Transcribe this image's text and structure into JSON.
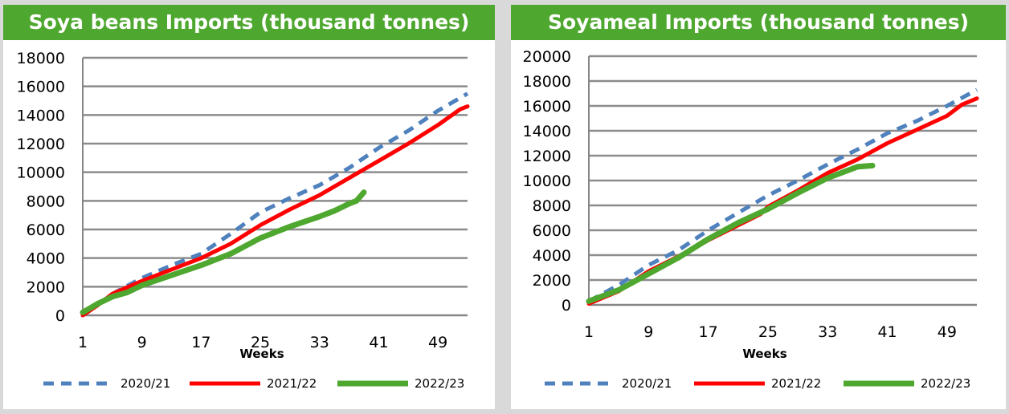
{
  "colors": {
    "s2020": "#4f81bd",
    "s2021": "#ff0000",
    "s2022": "#4ea72e",
    "banner": "#4ea72e"
  },
  "chart_data": [
    {
      "type": "line",
      "title": "Soya beans Imports (thousand tonnes)",
      "xlabel": "Weeks",
      "ylabel": "",
      "xlim": [
        1,
        53
      ],
      "ylim": [
        0,
        18000
      ],
      "xticks": [
        1,
        9,
        17,
        25,
        33,
        41,
        49
      ],
      "yticks": [
        0,
        2000,
        4000,
        6000,
        8000,
        10000,
        12000,
        14000,
        16000,
        18000
      ],
      "grid": true,
      "legend": "bottom",
      "series": [
        {
          "name": "2020/21",
          "style": "dashed",
          "color": "#4f81bd",
          "x": [
            1,
            3,
            5,
            9,
            13,
            17,
            21,
            25,
            29,
            33,
            37,
            41,
            45,
            49,
            53
          ],
          "y": [
            0,
            700,
            1500,
            2600,
            3500,
            4300,
            5700,
            7200,
            8200,
            9100,
            10300,
            11700,
            12900,
            14300,
            15500
          ]
        },
        {
          "name": "2021/22",
          "style": "solid",
          "color": "#ff0000",
          "x": [
            1,
            3,
            5,
            9,
            13,
            17,
            21,
            25,
            29,
            33,
            37,
            41,
            45,
            49,
            52,
            53
          ],
          "y": [
            0,
            700,
            1500,
            2400,
            3200,
            4000,
            5000,
            6300,
            7400,
            8400,
            9600,
            10800,
            12000,
            13300,
            14400,
            14600
          ]
        },
        {
          "name": "2022/23",
          "style": "solid",
          "color": "#4ea72e",
          "x": [
            1,
            3,
            5,
            7,
            9,
            13,
            17,
            21,
            25,
            29,
            33,
            35,
            37,
            38,
            39
          ],
          "y": [
            200,
            800,
            1300,
            1600,
            2100,
            2800,
            3500,
            4300,
            5400,
            6200,
            6900,
            7300,
            7800,
            8000,
            8600
          ]
        }
      ]
    },
    {
      "type": "line",
      "title": "Soyameal Imports (thousand tonnes)",
      "xlabel": "Weeks",
      "ylabel": "",
      "xlim": [
        1,
        53
      ],
      "ylim": [
        0,
        20000
      ],
      "xticks": [
        1,
        9,
        17,
        25,
        33,
        41,
        49
      ],
      "yticks": [
        0,
        2000,
        4000,
        6000,
        8000,
        10000,
        12000,
        14000,
        16000,
        18000,
        20000
      ],
      "grid": true,
      "legend": "bottom",
      "series": [
        {
          "name": "2020/21",
          "style": "dashed",
          "color": "#4f81bd",
          "x": [
            1,
            5,
            9,
            13,
            17,
            21,
            25,
            29,
            33,
            37,
            41,
            45,
            49,
            53
          ],
          "y": [
            300,
            1600,
            3200,
            4400,
            6000,
            7400,
            8800,
            10000,
            11300,
            12500,
            13800,
            14800,
            16000,
            17300
          ]
        },
        {
          "name": "2021/22",
          "style": "solid",
          "color": "#ff0000",
          "x": [
            1,
            5,
            9,
            13,
            17,
            21,
            24,
            25,
            29,
            33,
            37,
            41,
            45,
            49,
            51,
            53
          ],
          "y": [
            100,
            1100,
            2700,
            3900,
            5200,
            6400,
            7300,
            7900,
            9200,
            10600,
            11700,
            13000,
            14100,
            15200,
            16100,
            16600
          ]
        },
        {
          "name": "2022/23",
          "style": "solid",
          "color": "#4ea72e",
          "x": [
            1,
            5,
            9,
            13,
            17,
            21,
            25,
            29,
            33,
            37,
            39
          ],
          "y": [
            300,
            1200,
            2500,
            3800,
            5300,
            6600,
            7700,
            9000,
            10200,
            11100,
            11200
          ]
        }
      ]
    }
  ]
}
